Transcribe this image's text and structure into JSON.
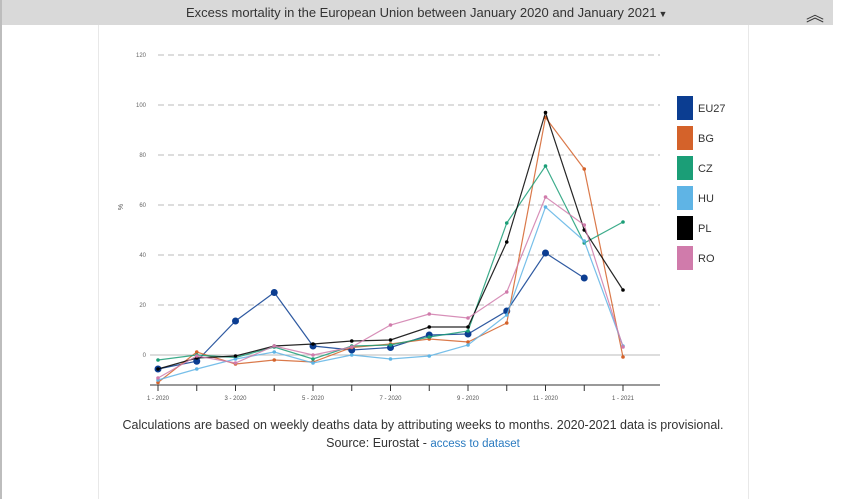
{
  "header": {
    "title": "Excess mortality in the European Union between January 2020 and January 2021",
    "caret_icon": "caret-down-icon",
    "collapse_icon": "double-chevron-up-icon"
  },
  "chart_data": {
    "type": "line",
    "title": "",
    "xlabel": "",
    "ylabel": "%",
    "ylim": [
      -12,
      120
    ],
    "yticks": [
      0,
      20,
      40,
      60,
      80,
      100,
      120
    ],
    "x": [
      "1 - 2020",
      "2 - 2020",
      "3 - 2020",
      "4 - 2020",
      "5 - 2020",
      "6 - 2020",
      "7 - 2020",
      "8 - 2020",
      "9 - 2020",
      "10 - 2020",
      "11 - 2020",
      "12 - 2020",
      "1 - 2021"
    ],
    "xtick_labels": [
      "1 - 2020",
      "",
      "3 - 2020",
      "",
      "5 - 2020",
      "",
      "7 - 2020",
      "",
      "9 - 2020",
      "",
      "11 - 2020",
      "",
      "1 - 2021"
    ],
    "grid": "horizontal dashed",
    "legend_position": "right",
    "series": [
      {
        "name": "EU27",
        "color": "#0b3d91",
        "values": [
          -5.6,
          -2.5,
          13.6,
          25,
          3.6,
          2,
          3,
          8,
          8.4,
          17.6,
          40.8,
          30.8,
          null
        ]
      },
      {
        "name": "BG",
        "color": "#d4622a",
        "values": [
          -11,
          1.2,
          -3.6,
          -2,
          -2.8,
          3,
          4.4,
          6.4,
          5.2,
          12.8,
          95,
          74.4,
          -0.8
        ]
      },
      {
        "name": "CZ",
        "color": "#1b9e77",
        "values": [
          -2,
          0,
          -1,
          3.2,
          -1.6,
          3.6,
          4,
          7.2,
          9.6,
          52.8,
          75.6,
          44.8,
          53.2
        ]
      },
      {
        "name": "HU",
        "color": "#5fb4e5",
        "values": [
          -10,
          -5.6,
          -1.6,
          1.2,
          -3.2,
          0,
          -1.6,
          -0.4,
          4,
          16,
          59.2,
          45.6,
          3.6
        ]
      },
      {
        "name": "PL",
        "color": "#000000",
        "values": [
          -5.6,
          -1.2,
          -0.4,
          3.6,
          4.4,
          5.6,
          6,
          11.2,
          11.2,
          45.2,
          97,
          50,
          26
        ]
      },
      {
        "name": "RO",
        "color": "#d07bab",
        "values": [
          -9.2,
          -0.4,
          -3.2,
          3.6,
          0,
          3.2,
          12,
          16.4,
          14.8,
          25.2,
          63.2,
          52,
          3.2
        ]
      }
    ]
  },
  "footer": {
    "note": "Calculations are based on weekly deaths data by attributing weeks to months. 2020-2021 data is provisional.",
    "source_prefix": "Source: Eurostat - ",
    "source_link": "access to dataset"
  }
}
